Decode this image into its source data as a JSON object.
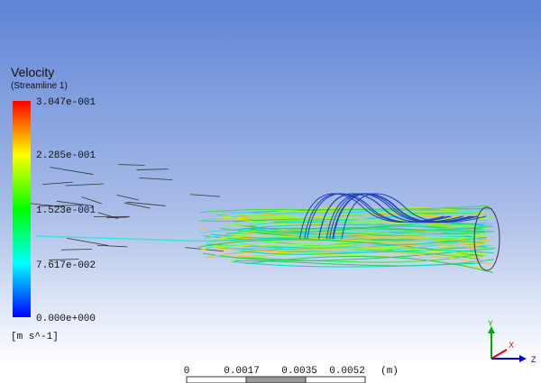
{
  "legend": {
    "title": "Velocity",
    "subtitle": "(Streamline 1)",
    "labels": [
      "3.047e-001",
      "2.285e-001",
      "1.523e-001",
      "7.617e-002",
      "0.000e+000"
    ],
    "unit": "[m s^-1]"
  },
  "scale": {
    "labels": [
      "0",
      "0.0017",
      "0.0035",
      "0.0052"
    ],
    "unit": "(m)"
  },
  "triad": {
    "y": "Y",
    "z": "Z",
    "x": "X"
  }
}
